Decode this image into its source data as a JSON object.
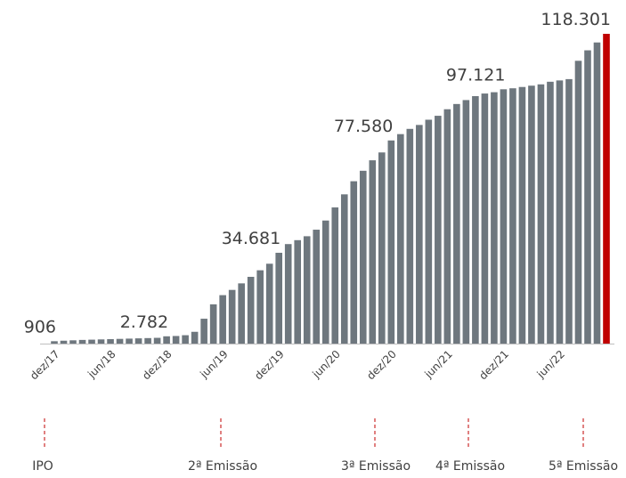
{
  "chart_data": {
    "type": "bar",
    "categories": [
      "dez/17",
      null,
      null,
      null,
      null,
      null,
      "jun/18",
      null,
      null,
      null,
      null,
      null,
      "dez/18",
      null,
      null,
      null,
      null,
      null,
      "jun/19",
      null,
      null,
      null,
      null,
      null,
      "dez/19",
      null,
      null,
      null,
      null,
      null,
      "jun/20",
      null,
      null,
      null,
      null,
      null,
      "dez/20",
      null,
      null,
      null,
      null,
      null,
      "jun/21",
      null,
      null,
      null,
      null,
      null,
      "dez/21",
      null,
      null,
      null,
      null,
      null,
      "jun/22",
      null,
      null,
      null,
      null,
      null
    ],
    "values": [
      906,
      1100,
      1250,
      1400,
      1500,
      1600,
      1700,
      1800,
      1900,
      2000,
      2100,
      2200,
      2782,
      2900,
      3200,
      4500,
      9500,
      15000,
      18500,
      20500,
      23000,
      25500,
      28000,
      30500,
      34681,
      38000,
      39500,
      41000,
      43500,
      47000,
      52000,
      57000,
      62000,
      66000,
      70000,
      73000,
      77580,
      80000,
      82000,
      83500,
      85500,
      87000,
      89500,
      91500,
      93000,
      94500,
      95500,
      96000,
      97121,
      97500,
      98000,
      98500,
      99000,
      100000,
      100500,
      101000,
      108000,
      112000,
      115000,
      118301
    ],
    "value_labels": [
      "906",
      null,
      null,
      null,
      null,
      null,
      null,
      null,
      null,
      null,
      null,
      null,
      "2.782",
      null,
      null,
      null,
      null,
      null,
      null,
      null,
      null,
      null,
      null,
      null,
      "34.681",
      null,
      null,
      null,
      null,
      null,
      null,
      null,
      null,
      null,
      null,
      null,
      "77.580",
      null,
      null,
      null,
      null,
      null,
      null,
      null,
      null,
      null,
      null,
      null,
      "97.121",
      null,
      null,
      null,
      null,
      null,
      null,
      null,
      null,
      null,
      null,
      "118.301"
    ],
    "color": "#6e777e",
    "last_color": "#c00000",
    "ylim": [
      0,
      120000
    ],
    "annotations": [
      "IPO",
      "2ª Emissão",
      "3ª Emissão",
      "4ª Emissão",
      "5ª Emissão"
    ]
  }
}
